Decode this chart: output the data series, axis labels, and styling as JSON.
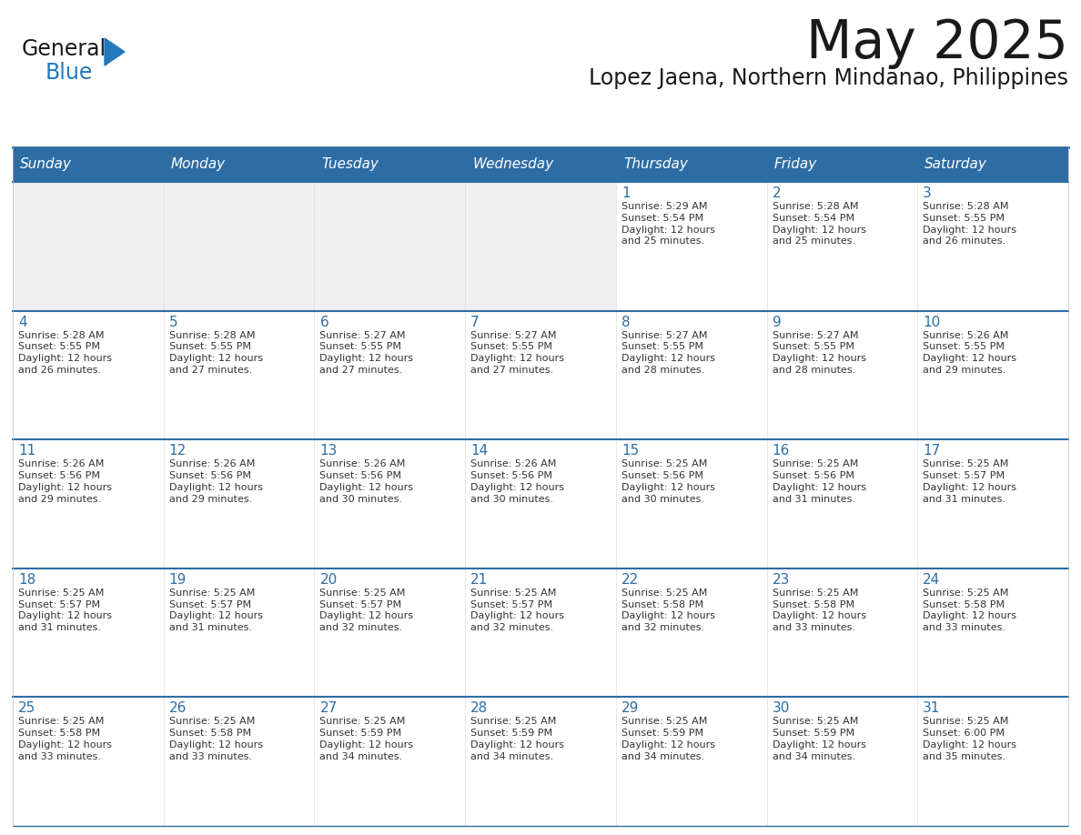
{
  "title": "May 2025",
  "subtitle": "Lopez Jaena, Northern Mindanao, Philippines",
  "header_bg": "#2E6DA4",
  "header_text": "#FFFFFF",
  "cell_bg": "#FFFFFF",
  "cell_bg_empty": "#F0F0F0",
  "row_border_color": "#2E6DA4",
  "col_border_color": "#CCCCCC",
  "day_headers": [
    "Sunday",
    "Monday",
    "Tuesday",
    "Wednesday",
    "Thursday",
    "Friday",
    "Saturday"
  ],
  "title_color": "#1a1a1a",
  "subtitle_color": "#1a1a1a",
  "day_num_color": "#2E6DA4",
  "info_color": "#333333",
  "calendar": [
    [
      "",
      "",
      "",
      "",
      "1",
      "2",
      "3"
    ],
    [
      "4",
      "5",
      "6",
      "7",
      "8",
      "9",
      "10"
    ],
    [
      "11",
      "12",
      "13",
      "14",
      "15",
      "16",
      "17"
    ],
    [
      "18",
      "19",
      "20",
      "21",
      "22",
      "23",
      "24"
    ],
    [
      "25",
      "26",
      "27",
      "28",
      "29",
      "30",
      "31"
    ]
  ],
  "sunrise_data": {
    "1": "Sunrise: 5:29 AM\nSunset: 5:54 PM\nDaylight: 12 hours\nand 25 minutes.",
    "2": "Sunrise: 5:28 AM\nSunset: 5:54 PM\nDaylight: 12 hours\nand 25 minutes.",
    "3": "Sunrise: 5:28 AM\nSunset: 5:55 PM\nDaylight: 12 hours\nand 26 minutes.",
    "4": "Sunrise: 5:28 AM\nSunset: 5:55 PM\nDaylight: 12 hours\nand 26 minutes.",
    "5": "Sunrise: 5:28 AM\nSunset: 5:55 PM\nDaylight: 12 hours\nand 27 minutes.",
    "6": "Sunrise: 5:27 AM\nSunset: 5:55 PM\nDaylight: 12 hours\nand 27 minutes.",
    "7": "Sunrise: 5:27 AM\nSunset: 5:55 PM\nDaylight: 12 hours\nand 27 minutes.",
    "8": "Sunrise: 5:27 AM\nSunset: 5:55 PM\nDaylight: 12 hours\nand 28 minutes.",
    "9": "Sunrise: 5:27 AM\nSunset: 5:55 PM\nDaylight: 12 hours\nand 28 minutes.",
    "10": "Sunrise: 5:26 AM\nSunset: 5:55 PM\nDaylight: 12 hours\nand 29 minutes.",
    "11": "Sunrise: 5:26 AM\nSunset: 5:56 PM\nDaylight: 12 hours\nand 29 minutes.",
    "12": "Sunrise: 5:26 AM\nSunset: 5:56 PM\nDaylight: 12 hours\nand 29 minutes.",
    "13": "Sunrise: 5:26 AM\nSunset: 5:56 PM\nDaylight: 12 hours\nand 30 minutes.",
    "14": "Sunrise: 5:26 AM\nSunset: 5:56 PM\nDaylight: 12 hours\nand 30 minutes.",
    "15": "Sunrise: 5:25 AM\nSunset: 5:56 PM\nDaylight: 12 hours\nand 30 minutes.",
    "16": "Sunrise: 5:25 AM\nSunset: 5:56 PM\nDaylight: 12 hours\nand 31 minutes.",
    "17": "Sunrise: 5:25 AM\nSunset: 5:57 PM\nDaylight: 12 hours\nand 31 minutes.",
    "18": "Sunrise: 5:25 AM\nSunset: 5:57 PM\nDaylight: 12 hours\nand 31 minutes.",
    "19": "Sunrise: 5:25 AM\nSunset: 5:57 PM\nDaylight: 12 hours\nand 31 minutes.",
    "20": "Sunrise: 5:25 AM\nSunset: 5:57 PM\nDaylight: 12 hours\nand 32 minutes.",
    "21": "Sunrise: 5:25 AM\nSunset: 5:57 PM\nDaylight: 12 hours\nand 32 minutes.",
    "22": "Sunrise: 5:25 AM\nSunset: 5:58 PM\nDaylight: 12 hours\nand 32 minutes.",
    "23": "Sunrise: 5:25 AM\nSunset: 5:58 PM\nDaylight: 12 hours\nand 33 minutes.",
    "24": "Sunrise: 5:25 AM\nSunset: 5:58 PM\nDaylight: 12 hours\nand 33 minutes.",
    "25": "Sunrise: 5:25 AM\nSunset: 5:58 PM\nDaylight: 12 hours\nand 33 minutes.",
    "26": "Sunrise: 5:25 AM\nSunset: 5:58 PM\nDaylight: 12 hours\nand 33 minutes.",
    "27": "Sunrise: 5:25 AM\nSunset: 5:59 PM\nDaylight: 12 hours\nand 34 minutes.",
    "28": "Sunrise: 5:25 AM\nSunset: 5:59 PM\nDaylight: 12 hours\nand 34 minutes.",
    "29": "Sunrise: 5:25 AM\nSunset: 5:59 PM\nDaylight: 12 hours\nand 34 minutes.",
    "30": "Sunrise: 5:25 AM\nSunset: 5:59 PM\nDaylight: 12 hours\nand 34 minutes.",
    "31": "Sunrise: 5:25 AM\nSunset: 6:00 PM\nDaylight: 12 hours\nand 35 minutes."
  },
  "logo_text1": "General",
  "logo_text2": "Blue",
  "logo_color1": "#1a1a1a",
  "logo_color2": "#2479BD",
  "logo_triangle_color": "#2479BD",
  "fig_width": 11.88,
  "fig_height": 9.18,
  "dpi": 100
}
